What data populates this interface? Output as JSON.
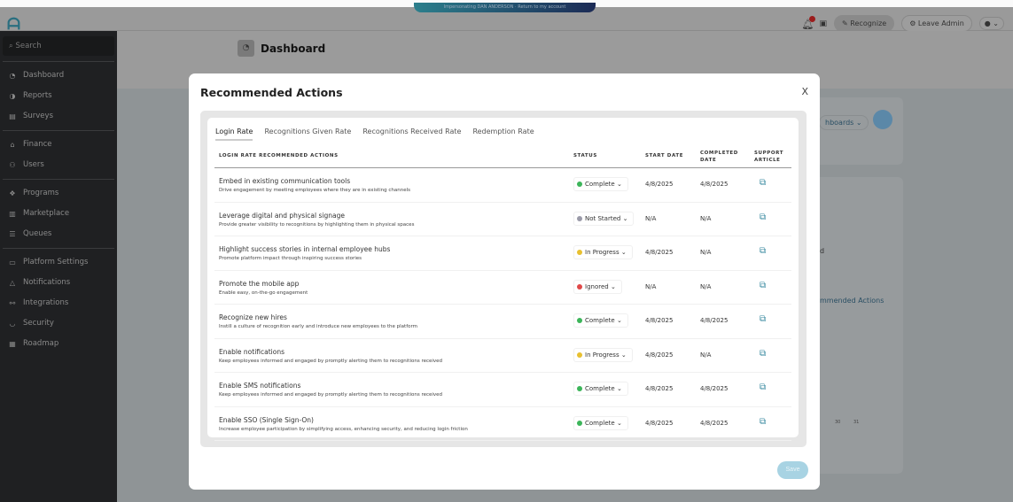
{
  "topbar": {
    "impersonation": "Impersonating DAN ANDERSON · Return to my account",
    "notification_count": "1",
    "recognize": "Recognize",
    "leave_admin": "Leave Admin"
  },
  "sidebar": {
    "search_placeholder": "Search",
    "groups": [
      [
        {
          "label": "Dashboard",
          "icon": "gauge-icon"
        },
        {
          "label": "Reports",
          "icon": "pie-chart-icon"
        },
        {
          "label": "Surveys",
          "icon": "clipboard-icon"
        }
      ],
      [
        {
          "label": "Finance",
          "icon": "bank-icon"
        },
        {
          "label": "Users",
          "icon": "users-icon"
        }
      ],
      [
        {
          "label": "Programs",
          "icon": "programs-icon"
        },
        {
          "label": "Marketplace",
          "icon": "store-icon"
        },
        {
          "label": "Queues",
          "icon": "queue-icon"
        }
      ],
      [
        {
          "label": "Platform Settings",
          "icon": "window-icon"
        },
        {
          "label": "Notifications",
          "icon": "bell-icon"
        },
        {
          "label": "Integrations",
          "icon": "integrations-icon"
        },
        {
          "label": "Security",
          "icon": "shield-icon"
        },
        {
          "label": "Roadmap",
          "icon": "map-icon"
        }
      ]
    ]
  },
  "page": {
    "title": "Dashboard",
    "bg_dashboards": "hboards",
    "bg_fragment_d": "d",
    "bg_recommended": "mmended Actions",
    "bg_ticks": [
      "30",
      "31"
    ]
  },
  "modal": {
    "title": "Recommended Actions",
    "close": "X",
    "save": "Save",
    "tabs": [
      "Login Rate",
      "Recognitions Given Rate",
      "Recognitions Received Rate",
      "Redemption Rate"
    ],
    "active_tab": 0,
    "columns": {
      "action": "LOGIN RATE RECOMMENDED ACTIONS",
      "status": "STATUS",
      "start": "START DATE",
      "completed_1": "COMPLETED",
      "completed_2": "DATE",
      "support_1": "SUPPORT",
      "support_2": "ARTICLE"
    },
    "status_colors": {
      "Complete": "#3cb55a",
      "Not Started": "#9a9aa8",
      "In Progress": "#e8c030",
      "Ignored": "#e04848"
    },
    "rows": [
      {
        "title": "Embed in existing communication tools",
        "desc": "Drive engagement by meeting employees where they are in existing channels",
        "status": "Complete",
        "start": "4/8/2025",
        "completed": "4/8/2025"
      },
      {
        "title": "Leverage digital and physical signage",
        "desc": "Provide greater visibility to recognitions by highlighting them in physical spaces",
        "status": "Not Started",
        "start": "N/A",
        "completed": "N/A"
      },
      {
        "title": "Highlight success stories in internal employee hubs",
        "desc": "Promote platform impact through inspiring success stories",
        "status": "In Progress",
        "start": "4/8/2025",
        "completed": "N/A"
      },
      {
        "title": "Promote the mobile app",
        "desc": "Enable easy, on-the-go engagement",
        "status": "Ignored",
        "start": "N/A",
        "completed": "N/A"
      },
      {
        "title": "Recognize new hires",
        "desc": "Instill a culture of recognition early and introduce new employees to the platform",
        "status": "Complete",
        "start": "4/8/2025",
        "completed": "4/8/2025"
      },
      {
        "title": "Enable notifications",
        "desc": "Keep employees informed and engaged by promptly alerting them to recognitions received",
        "status": "In Progress",
        "start": "4/8/2025",
        "completed": "N/A"
      },
      {
        "title": "Enable SMS notifications",
        "desc": "Keep employees informed and engaged by promptly alerting them to recognitions received",
        "status": "Complete",
        "start": "4/8/2025",
        "completed": "4/8/2025"
      },
      {
        "title": "Enable SSO (Single Sign-On)",
        "desc": "Increase employee participation by simplifying access, enhancing security, and reducing login friction",
        "status": "Complete",
        "start": "4/8/2025",
        "completed": "4/8/2025"
      }
    ]
  }
}
